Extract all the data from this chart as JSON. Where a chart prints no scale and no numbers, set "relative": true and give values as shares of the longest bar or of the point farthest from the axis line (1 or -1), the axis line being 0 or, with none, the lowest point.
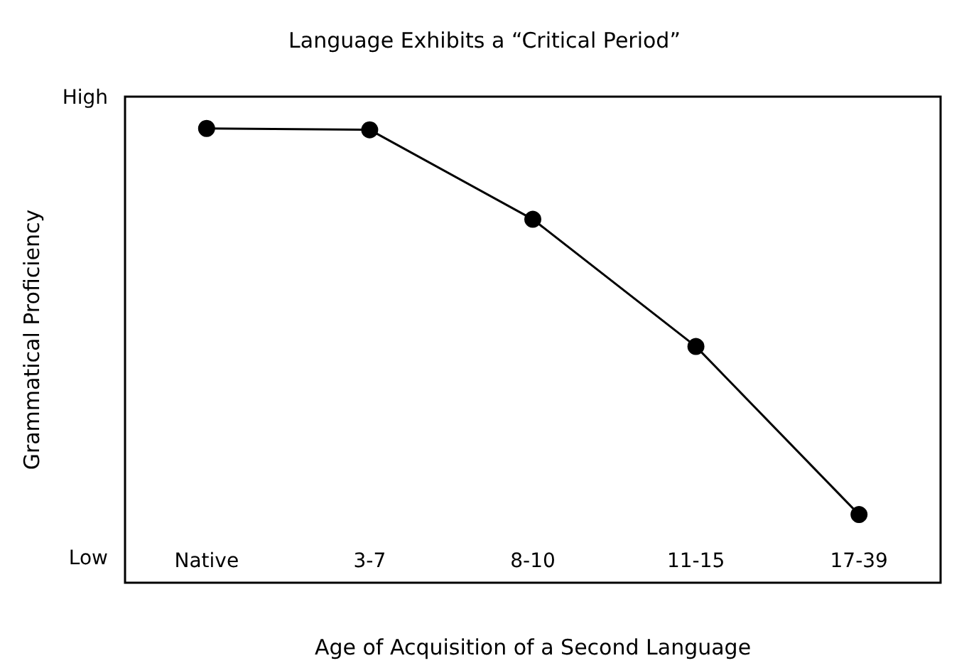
{
  "chart_data": {
    "type": "line",
    "title": "Language Exhibits a “Critical Period”",
    "xlabel": "Age of Acquisition of a Second Language",
    "ylabel": "Grammatical Proficiency",
    "relative": true,
    "annotations": [
      "High",
      "Low"
    ],
    "categories": [
      "Native",
      "3-7",
      "8-10",
      "11-15",
      "17-39"
    ],
    "series": [
      {
        "color": "#000000",
        "values": [
          1,
          0.997,
          0.8,
          0.52,
          0.15
        ]
      }
    ],
    "marker": "circle",
    "line_style": "solid",
    "grid": false
  }
}
